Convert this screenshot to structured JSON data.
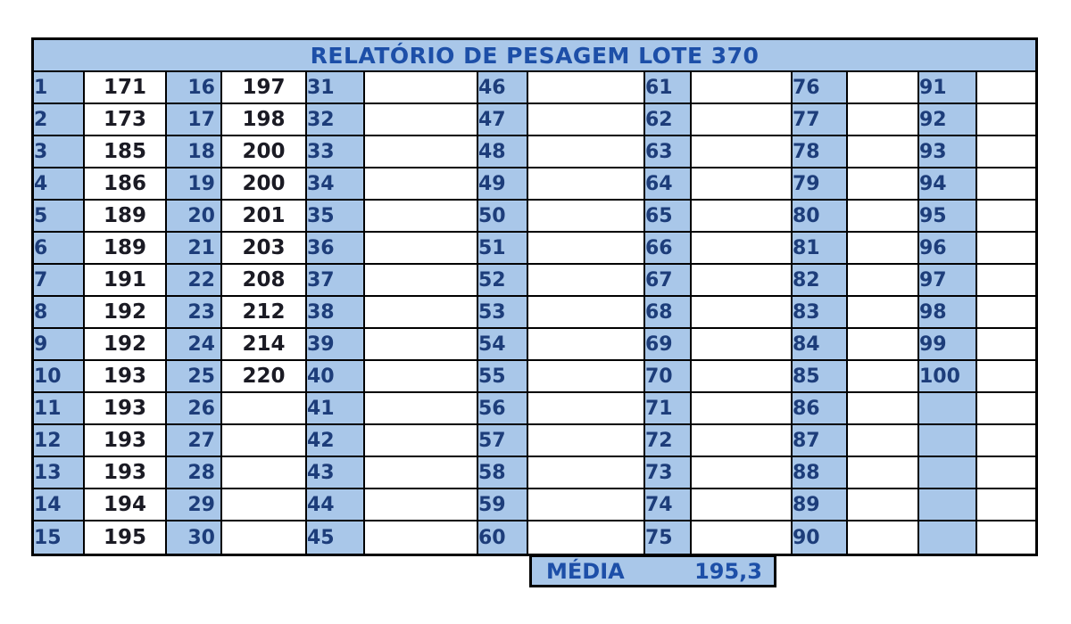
{
  "report": {
    "title": "RELATÓRIO DE PESAGEM LOTE 370",
    "media": {
      "label": "MÉDIA",
      "value": "195,3"
    }
  },
  "colors": {
    "blue": "#a9c7e9",
    "title_ink": "#1d4fa8",
    "label_ink": "#1d3d7a",
    "value_ink": "#1b1b24",
    "line": "#000000"
  },
  "groups": [
    {
      "labels": [
        "1",
        "2",
        "3",
        "4",
        "5",
        "6",
        "7",
        "8",
        "9",
        "10",
        "11",
        "12",
        "13",
        "14",
        "15"
      ],
      "values": [
        "171",
        "173",
        "185",
        "186",
        "189",
        "189",
        "191",
        "192",
        "192",
        "193",
        "193",
        "193",
        "193",
        "194",
        "195"
      ]
    },
    {
      "labels": [
        "16",
        "17",
        "18",
        "19",
        "20",
        "21",
        "22",
        "23",
        "24",
        "25",
        "26",
        "27",
        "28",
        "29",
        "30"
      ],
      "values": [
        "197",
        "198",
        "200",
        "200",
        "201",
        "203",
        "208",
        "212",
        "214",
        "220",
        "",
        "",
        "",
        "",
        ""
      ]
    },
    {
      "labels": [
        "31",
        "32",
        "33",
        "34",
        "35",
        "36",
        "37",
        "38",
        "39",
        "40",
        "41",
        "42",
        "43",
        "44",
        "45"
      ],
      "values": [
        "",
        "",
        "",
        "",
        "",
        "",
        "",
        "",
        "",
        "",
        "",
        "",
        "",
        "",
        ""
      ]
    },
    {
      "labels": [
        "46",
        "47",
        "48",
        "49",
        "50",
        "51",
        "52",
        "53",
        "54",
        "55",
        "56",
        "57",
        "58",
        "59",
        "60"
      ],
      "values": [
        "",
        "",
        "",
        "",
        "",
        "",
        "",
        "",
        "",
        "",
        "",
        "",
        "",
        "",
        ""
      ]
    },
    {
      "labels": [
        "61",
        "62",
        "63",
        "64",
        "65",
        "66",
        "67",
        "68",
        "69",
        "70",
        "71",
        "72",
        "73",
        "74",
        "75"
      ],
      "values": [
        "",
        "",
        "",
        "",
        "",
        "",
        "",
        "",
        "",
        "",
        "",
        "",
        "",
        "",
        ""
      ]
    },
    {
      "labels": [
        "76",
        "77",
        "78",
        "79",
        "80",
        "81",
        "82",
        "83",
        "84",
        "85",
        "86",
        "87",
        "88",
        "89",
        "90"
      ],
      "values": [
        "",
        "",
        "",
        "",
        "",
        "",
        "",
        "",
        "",
        "",
        "",
        "",
        "",
        "",
        ""
      ]
    },
    {
      "labels": [
        "91",
        "92",
        "93",
        "94",
        "95",
        "96",
        "97",
        "98",
        "99",
        "100",
        "",
        "",
        "",
        "",
        ""
      ],
      "values": [
        "",
        "",
        "",
        "",
        "",
        "",
        "",
        "",
        "",
        "",
        "",
        "",
        "",
        "",
        ""
      ]
    }
  ]
}
